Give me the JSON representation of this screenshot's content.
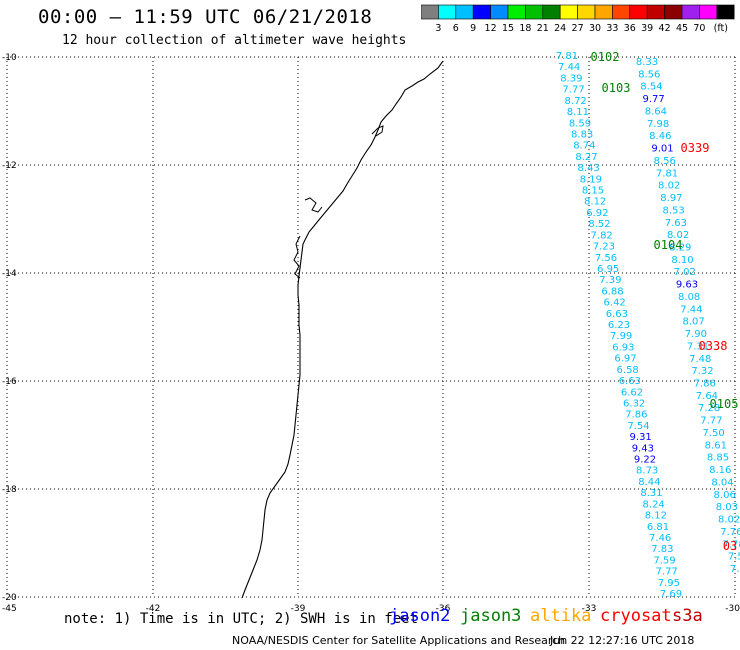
{
  "header": {
    "title": "00:00 – 11:59 UTC 06/21/2018",
    "subtitle": "12 hour collection of altimeter wave heights"
  },
  "color_scale": {
    "colors": [
      "#7f7f7f",
      "#00ffff",
      "#00bfff",
      "#0000ff",
      "#008bff",
      "#00ee00",
      "#00c000",
      "#008000",
      "#ffff00",
      "#ffd700",
      "#ffa500",
      "#ff4500",
      "#ff0000",
      "#c00000",
      "#8b0000",
      "#a020f0",
      "#ff00ff",
      "#000000"
    ],
    "labels": [
      "3",
      "6",
      "9",
      "12",
      "15",
      "18",
      "21",
      "24",
      "27",
      "30",
      "33",
      "36",
      "39",
      "42",
      "45",
      "70",
      "(ft)"
    ]
  },
  "map": {
    "lat_labels": [
      "-10",
      "-12",
      "-14",
      "-16",
      "-18",
      "-20"
    ],
    "lon_labels": [
      "-45",
      "-42",
      "-39",
      "-36",
      "-33",
      "-30"
    ],
    "coastline_color": "#000000",
    "grid": true,
    "passes": [
      {
        "label": "0102",
        "color": "#008000"
      },
      {
        "label": "0103",
        "color": "#008000"
      },
      {
        "label": "0339",
        "color": "#ff0000"
      },
      {
        "label": "0104",
        "color": "#008000"
      },
      {
        "label": "0338",
        "color": "#ff0000"
      },
      {
        "label": "0105",
        "color": "#008000"
      },
      {
        "label": "03",
        "color": "#ff0000"
      }
    ],
    "tracks": [
      {
        "values": [
          "7.81",
          "7.44",
          "8.39",
          "7.77",
          "8.72",
          "8.11",
          "8.59",
          "8.83",
          "8.74",
          "8.27",
          "8.43",
          "8.19",
          "8.15",
          "8.12",
          "6.92",
          "8.52",
          "7.82",
          "7.23",
          "7.56",
          "6.95",
          "7.39",
          "6.88",
          "6.42",
          "6.63",
          "6.23",
          "7.99",
          "6.93",
          "6.97",
          "6.58",
          "6.63",
          "6.62",
          "6.32",
          "7.86",
          "7.54",
          "9.31",
          "9.43",
          "9.22",
          "8.73",
          "8.44",
          "8.31",
          "8.24",
          "8.12",
          "6.81",
          "7.46",
          "7.83",
          "7.59",
          "7.77",
          "7.95",
          "7.69"
        ],
        "colors": [
          "#00bfff",
          "#00bfff",
          "#00bfff",
          "#00bfff",
          "#00bfff",
          "#00bfff",
          "#00bfff",
          "#00bfff",
          "#00bfff",
          "#00bfff",
          "#00bfff",
          "#00bfff",
          "#00bfff",
          "#00bfff",
          "#00bfff",
          "#00bfff",
          "#00bfff",
          "#00bfff",
          "#00bfff",
          "#00bfff",
          "#00bfff",
          "#00bfff",
          "#00bfff",
          "#00bfff",
          "#00bfff",
          "#00bfff",
          "#00bfff",
          "#00bfff",
          "#00bfff",
          "#00bfff",
          "#00bfff",
          "#00bfff",
          "#00bfff",
          "#00bfff",
          "#0000ff",
          "#0000ff",
          "#0000ff",
          "#00bfff",
          "#00bfff",
          "#00bfff",
          "#00bfff",
          "#00bfff",
          "#00bfff",
          "#00bfff",
          "#00bfff",
          "#00bfff",
          "#00bfff",
          "#00bfff",
          "#00bfff"
        ]
      },
      {
        "values": [
          "8.33",
          "8.56",
          "8.54",
          "9.77",
          "8.64",
          "7.98",
          "8.46",
          "9.01",
          "8.56",
          "7.81",
          "8.02",
          "8.97",
          "8.53",
          "7.63",
          "8.02",
          "8.29",
          "8.10",
          "7.02",
          "9.63",
          "8.08",
          "7.44",
          "8.07",
          "7.90",
          "7.31",
          "7.48",
          "7.32",
          "7.86",
          "7.64",
          "7.28",
          "7.77",
          "7.50",
          "8.61",
          "8.85",
          "8.16",
          "8.04",
          "8.06",
          "8.03",
          "8.02",
          "7.76",
          "7.78",
          "7.5",
          "7.3"
        ],
        "colors": [
          "#00bfff",
          "#00bfff",
          "#00bfff",
          "#0000ff",
          "#00bfff",
          "#00bfff",
          "#00bfff",
          "#0000ff",
          "#00bfff",
          "#00bfff",
          "#00bfff",
          "#00bfff",
          "#00bfff",
          "#00bfff",
          "#00bfff",
          "#00bfff",
          "#00bfff",
          "#00bfff",
          "#0000ff",
          "#00bfff",
          "#00bfff",
          "#00bfff",
          "#00bfff",
          "#00bfff",
          "#00bfff",
          "#00bfff",
          "#00bfff",
          "#00bfff",
          "#00bfff",
          "#00bfff",
          "#00bfff",
          "#00bfff",
          "#00bfff",
          "#00bfff",
          "#00bfff",
          "#00bfff",
          "#00bfff",
          "#00bfff",
          "#00bfff",
          "#00bfff",
          "#00bfff",
          "#00bfff"
        ]
      }
    ]
  },
  "footer": {
    "note": "note: 1) Time is in UTC; 2) SWH is in feet",
    "satellites": [
      {
        "name": "jason2",
        "color": "#0000ff"
      },
      {
        "name": "jason3",
        "color": "#008000"
      },
      {
        "name": "altika",
        "color": "#ffa500"
      },
      {
        "name": "cryosat",
        "color": "#ff0000"
      },
      {
        "name": "s3a",
        "color": "#c00000"
      }
    ],
    "credit": "NOAA/NESDIS Center for Satellite Applications and Research",
    "timestamp": "Jun 22 12:27:16 UTC 2018"
  }
}
